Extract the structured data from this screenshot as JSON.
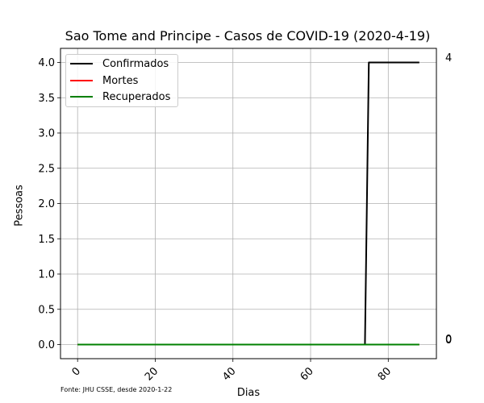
{
  "chart_data": {
    "type": "line",
    "title": "Sao Tome and Principe - Casos de COVID-19 (2020-4-19)",
    "xlabel": "Dias",
    "ylabel": "Pessoas",
    "footnote": "Fonte: JHU CSSE, desde 2020-1-22",
    "xlim": [
      -4.4,
      92.4
    ],
    "ylim": [
      -0.2,
      4.2
    ],
    "x_ticks": [
      0,
      20,
      40,
      60,
      80
    ],
    "y_ticks": [
      0.0,
      0.5,
      1.0,
      1.5,
      2.0,
      2.5,
      3.0,
      3.5,
      4.0
    ],
    "y_tick_labels": [
      "0.0",
      "0.5",
      "1.0",
      "1.5",
      "2.0",
      "2.5",
      "3.0",
      "3.5",
      "4.0"
    ],
    "grid": true,
    "legend_position": "upper-left",
    "series": [
      {
        "name": "Confirmados",
        "color": "#000000",
        "points": [
          [
            0,
            0
          ],
          [
            74,
            0
          ],
          [
            75,
            4
          ],
          [
            88,
            4
          ]
        ],
        "end_label": "4"
      },
      {
        "name": "Mortes",
        "color": "#ff0000",
        "points": [
          [
            0,
            0
          ],
          [
            88,
            0
          ]
        ],
        "end_label": "0"
      },
      {
        "name": "Recuperados",
        "color": "#008000",
        "points": [
          [
            0,
            0
          ],
          [
            88,
            0
          ]
        ],
        "end_label": "0"
      }
    ]
  }
}
